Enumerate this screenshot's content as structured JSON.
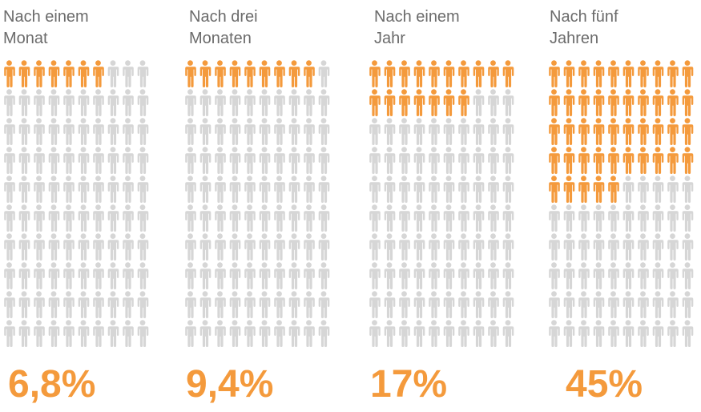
{
  "chart_data": {
    "type": "pictogram",
    "units_per_panel": 100,
    "colors": {
      "highlight": "#f49a3c",
      "base": "#d6d6d6",
      "value_text": "#f49a3c",
      "title_text": "#6b6b6b"
    },
    "panels": [
      {
        "title": "Nach einem\nMonat",
        "value_label": "6,8%",
        "value": 6.8
      },
      {
        "title": "Nach drei\nMonaten",
        "value_label": "9,4%",
        "value": 9.4
      },
      {
        "title": "Nach einem\nJahr",
        "value_label": "17%",
        "value": 17
      },
      {
        "title": "Nach fünf\nJahren",
        "value_label": "45%",
        "value": 45
      }
    ]
  }
}
